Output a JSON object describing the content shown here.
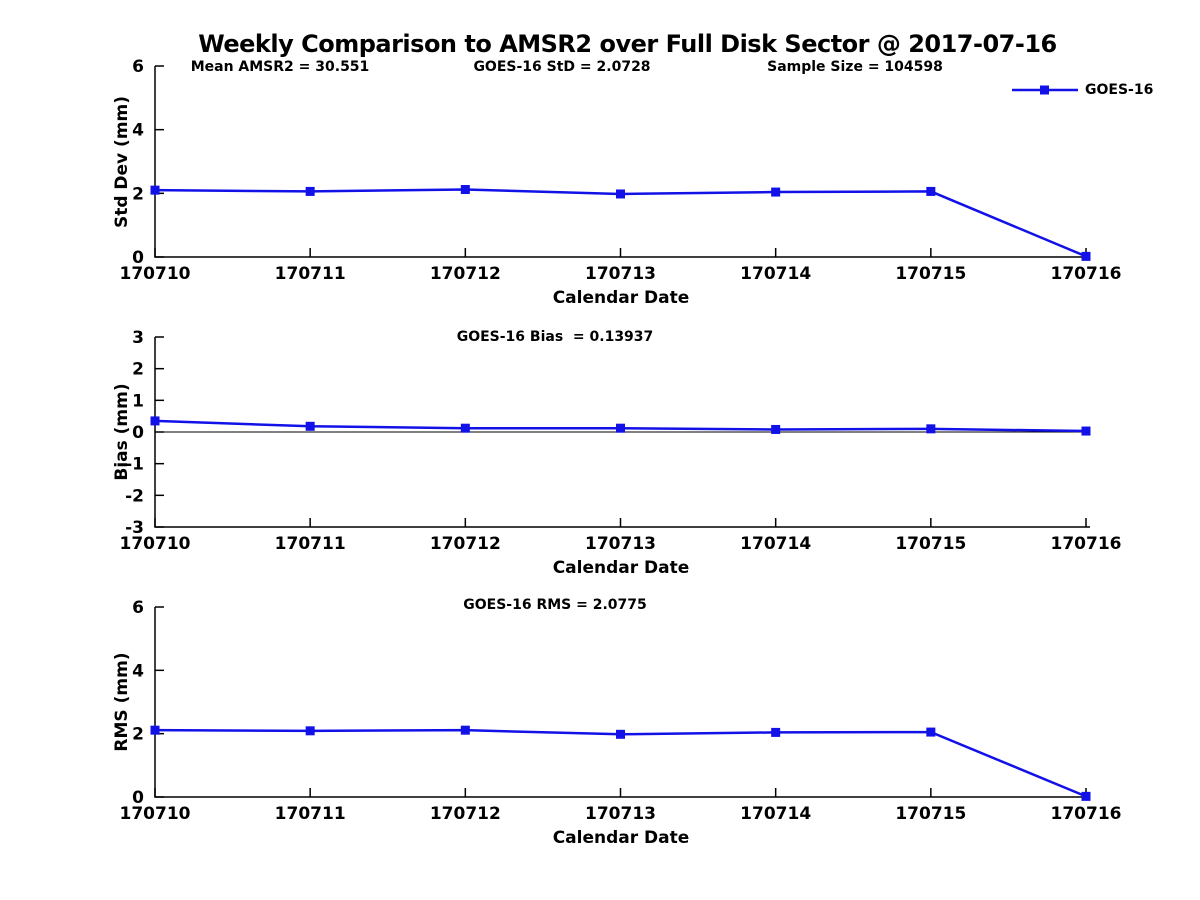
{
  "title": "Weekly Comparison to AMSR2 over Full Disk Sector @ 2017-07-16",
  "legend": {
    "label": "GOES-16"
  },
  "colors": {
    "series": "#1111e8",
    "axis": "#000000",
    "text": "#000000",
    "background": "#ffffff"
  },
  "chart_data": [
    {
      "type": "line",
      "name": "std-dev",
      "annotations": [
        "Mean AMSR2 = 30.551",
        "GOES-16 StD = 2.0728",
        "Sample Size = 104598"
      ],
      "categories": [
        "170710",
        "170711",
        "170712",
        "170713",
        "170714",
        "170715",
        "170716"
      ],
      "series": [
        {
          "name": "GOES-16",
          "values": [
            2.1,
            2.06,
            2.12,
            1.98,
            2.04,
            2.06,
            0.02
          ]
        }
      ],
      "xlabel": "Calendar Date",
      "ylabel": "Std Dev (mm)",
      "ylim": [
        0,
        6
      ],
      "yticks": [
        0,
        2,
        4,
        6
      ],
      "zero_line": false,
      "grid": false,
      "legend_position": "top-right-outside",
      "marker": "square"
    },
    {
      "type": "line",
      "name": "bias",
      "annotations": [
        "GOES-16 Bias  = 0.13937"
      ],
      "categories": [
        "170710",
        "170711",
        "170712",
        "170713",
        "170714",
        "170715",
        "170716"
      ],
      "series": [
        {
          "name": "GOES-16",
          "values": [
            0.35,
            0.18,
            0.12,
            0.12,
            0.08,
            0.1,
            0.03
          ]
        }
      ],
      "xlabel": "Calendar Date",
      "ylabel": "Bias (mm)",
      "ylim": [
        -3,
        3
      ],
      "yticks": [
        -3,
        -2,
        -1,
        0,
        1,
        2,
        3
      ],
      "zero_line": true,
      "grid": false,
      "marker": "square"
    },
    {
      "type": "line",
      "name": "rms",
      "annotations": [
        "GOES-16 RMS = 2.0775"
      ],
      "categories": [
        "170710",
        "170711",
        "170712",
        "170713",
        "170714",
        "170715",
        "170716"
      ],
      "series": [
        {
          "name": "GOES-16",
          "values": [
            2.11,
            2.09,
            2.11,
            1.98,
            2.04,
            2.05,
            0.02
          ]
        }
      ],
      "xlabel": "Calendar Date",
      "ylabel": "RMS (mm)",
      "ylim": [
        0,
        6
      ],
      "yticks": [
        0,
        2,
        4,
        6
      ],
      "zero_line": false,
      "grid": false,
      "marker": "square"
    }
  ]
}
